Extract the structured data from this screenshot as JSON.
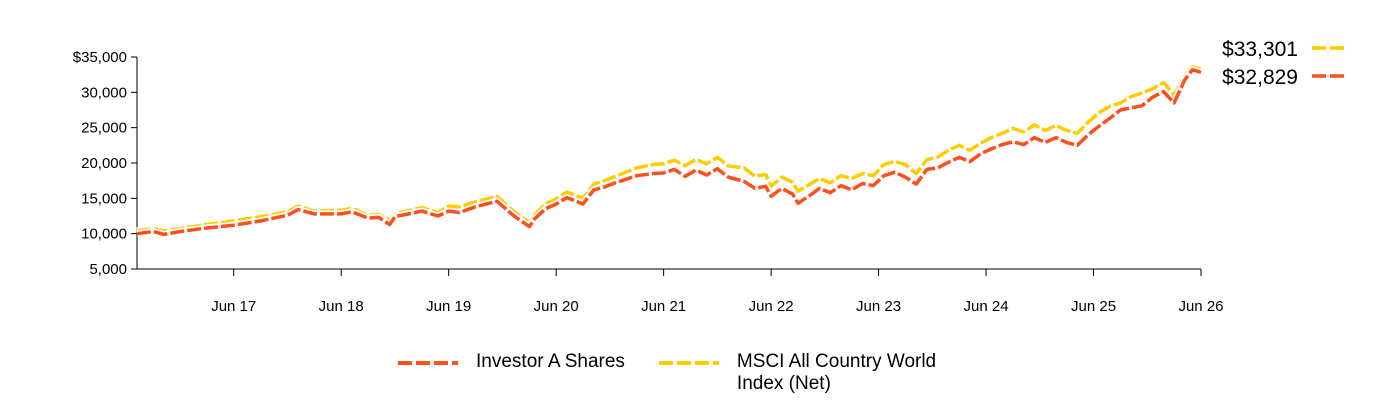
{
  "chart_data": {
    "type": "line",
    "y_tick_labels": [
      "$35,000",
      "30,000",
      "25,000",
      "20,000",
      "15,000",
      "10,000",
      "5,000"
    ],
    "y_ticks": [
      35000,
      30000,
      25000,
      20000,
      15000,
      10000,
      5000
    ],
    "ylim": [
      5000,
      35000
    ],
    "x_tick_labels": [
      "Jun 17",
      "Jun 18",
      "Jun 19",
      "Jun 20",
      "Jun 21",
      "Jun 22",
      "Jun 23",
      "Jun 24",
      "Jun 25",
      "Jun 26"
    ],
    "x_ticks": [
      2017.5,
      2018.5,
      2019.5,
      2020.5,
      2021.5,
      2022.5,
      2023.5,
      2024.5,
      2025.5,
      2026.5
    ],
    "xlim": [
      2016.6,
      2026.5
    ],
    "grid": false,
    "legend_position": "bottom",
    "series": [
      {
        "name": "MSCI All Country World Index (Net)",
        "color": "#FFCC00",
        "end_label": "$33,301",
        "x": [
          2016.6,
          2016.75,
          2016.85,
          2017.0,
          2017.25,
          2017.5,
          2017.75,
          2017.9,
          2018.0,
          2018.1,
          2018.25,
          2018.5,
          2018.6,
          2018.75,
          2018.85,
          2018.95,
          2019.0,
          2019.25,
          2019.4,
          2019.5,
          2019.6,
          2019.75,
          2019.95,
          2020.1,
          2020.25,
          2020.3,
          2020.4,
          2020.5,
          2020.6,
          2020.75,
          2020.85,
          2020.95,
          2021.05,
          2021.25,
          2021.4,
          2021.5,
          2021.6,
          2021.7,
          2021.8,
          2021.9,
          2022.0,
          2022.1,
          2022.25,
          2022.35,
          2022.45,
          2022.5,
          2022.6,
          2022.7,
          2022.75,
          2022.85,
          2022.95,
          2023.05,
          2023.15,
          2023.25,
          2023.35,
          2023.45,
          2023.55,
          2023.65,
          2023.75,
          2023.85,
          2023.95,
          2024.05,
          2024.15,
          2024.25,
          2024.35,
          2024.45,
          2024.55,
          2024.65,
          2024.75,
          2024.85,
          2024.95,
          2025.05,
          2025.15,
          2025.25,
          2025.35,
          2025.45,
          2025.55,
          2025.65,
          2025.75,
          2025.85,
          2025.95,
          2026.05,
          2026.15,
          2026.25,
          2026.35,
          2026.42,
          2026.5
        ],
        "values": [
          10400,
          10700,
          10400,
          10700,
          11300,
          11800,
          12400,
          12800,
          13100,
          13900,
          13200,
          13300,
          13600,
          12600,
          12700,
          11900,
          12800,
          13700,
          13000,
          13900,
          13800,
          14500,
          15300,
          13200,
          11600,
          12700,
          14200,
          14900,
          15900,
          15000,
          17000,
          17500,
          18100,
          19300,
          19800,
          19900,
          20400,
          19600,
          20500,
          19900,
          20800,
          19600,
          19300,
          18100,
          18400,
          16700,
          18000,
          17300,
          16000,
          16900,
          17800,
          17200,
          18200,
          17800,
          18500,
          18200,
          19800,
          20200,
          19800,
          18500,
          20500,
          20800,
          21800,
          22500,
          21800,
          22800,
          23600,
          24200,
          24900,
          24400,
          25400,
          24600,
          25300,
          24600,
          24200,
          25800,
          27100,
          28000,
          28500,
          29400,
          29900,
          30500,
          31400,
          29600,
          32300,
          33600,
          33301
        ]
      },
      {
        "name": "Investor A Shares",
        "color": "#FF4F1F",
        "end_label": "$32,829",
        "x": [
          2016.6,
          2016.75,
          2016.85,
          2017.0,
          2017.25,
          2017.5,
          2017.75,
          2017.9,
          2018.0,
          2018.1,
          2018.25,
          2018.5,
          2018.6,
          2018.75,
          2018.85,
          2018.95,
          2019.0,
          2019.25,
          2019.4,
          2019.5,
          2019.6,
          2019.75,
          2019.95,
          2020.1,
          2020.25,
          2020.3,
          2020.4,
          2020.5,
          2020.6,
          2020.75,
          2020.85,
          2020.95,
          2021.05,
          2021.25,
          2021.4,
          2021.5,
          2021.6,
          2021.7,
          2021.8,
          2021.9,
          2022.0,
          2022.1,
          2022.25,
          2022.35,
          2022.45,
          2022.5,
          2022.6,
          2022.7,
          2022.75,
          2022.85,
          2022.95,
          2023.05,
          2023.15,
          2023.25,
          2023.35,
          2023.45,
          2023.55,
          2023.65,
          2023.75,
          2023.85,
          2023.95,
          2024.05,
          2024.15,
          2024.25,
          2024.35,
          2024.45,
          2024.55,
          2024.65,
          2024.75,
          2024.85,
          2024.95,
          2025.05,
          2025.15,
          2025.25,
          2025.35,
          2025.45,
          2025.55,
          2025.65,
          2025.75,
          2025.85,
          2025.95,
          2026.05,
          2026.15,
          2026.25,
          2026.35,
          2026.42,
          2026.5
        ],
        "values": [
          10000,
          10300,
          9900,
          10300,
          10800,
          11200,
          11800,
          12300,
          12600,
          13400,
          12800,
          12800,
          13100,
          12200,
          12300,
          11300,
          12400,
          13200,
          12500,
          13200,
          13000,
          13800,
          14600,
          12600,
          11000,
          12100,
          13500,
          14200,
          15100,
          14200,
          16200,
          16600,
          17200,
          18200,
          18500,
          18600,
          19100,
          18100,
          19000,
          18300,
          19200,
          18000,
          17400,
          16400,
          16700,
          15300,
          16400,
          15600,
          14300,
          15300,
          16400,
          15800,
          16800,
          16200,
          17100,
          16800,
          18200,
          18700,
          18000,
          17000,
          19100,
          19300,
          20100,
          20800,
          20200,
          21300,
          22000,
          22600,
          23000,
          22600,
          23600,
          22900,
          23600,
          22900,
          22500,
          24000,
          25200,
          26300,
          27500,
          27800,
          28100,
          29300,
          30100,
          28500,
          31800,
          33200,
          32829
        ]
      }
    ]
  },
  "legend": {
    "items": [
      {
        "label": "Investor A Shares",
        "color": "#FF4F1F"
      },
      {
        "label": "MSCI All Country World Index (Net)",
        "color": "#FFCC00"
      }
    ]
  }
}
